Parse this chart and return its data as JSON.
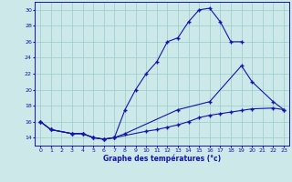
{
  "title": "Graphe des températures (°c)",
  "line_color": "#1414aa",
  "bg_color": "#cce8e8",
  "grid_color": "#99cccc",
  "xlim": [
    -0.5,
    23.5
  ],
  "ylim": [
    13.0,
    31.0
  ],
  "yticks": [
    14,
    16,
    18,
    20,
    22,
    24,
    26,
    28,
    30
  ],
  "xticks": [
    0,
    1,
    2,
    3,
    4,
    5,
    6,
    7,
    8,
    9,
    10,
    11,
    12,
    13,
    14,
    15,
    16,
    17,
    18,
    19,
    20,
    21,
    22,
    23
  ],
  "line_a_x": [
    0,
    1,
    3,
    4,
    5,
    6,
    7,
    8,
    9,
    10,
    11,
    12,
    13,
    14,
    15,
    16,
    17,
    18,
    19
  ],
  "line_a_y": [
    16,
    15,
    14.5,
    14.5,
    14,
    13.8,
    14,
    17.5,
    20,
    22,
    23.5,
    26,
    26.5,
    28.5,
    30,
    30.2,
    28.5,
    26,
    26
  ],
  "line_b_x": [
    0,
    1,
    3,
    4,
    5,
    6,
    7,
    8,
    13,
    16,
    19,
    20,
    22,
    23
  ],
  "line_b_y": [
    16,
    15,
    14.5,
    14.5,
    14,
    13.8,
    14,
    14.5,
    17.5,
    18.5,
    23,
    21,
    18.5,
    17.5
  ],
  "line_c_x": [
    0,
    1,
    3,
    4,
    5,
    6,
    7,
    10,
    11,
    12,
    13,
    14,
    15,
    16,
    17,
    18,
    19,
    20,
    22,
    23
  ],
  "line_c_y": [
    16,
    15,
    14.5,
    14.5,
    14,
    13.8,
    14,
    14.8,
    15.0,
    15.3,
    15.6,
    16.0,
    16.5,
    16.8,
    17.0,
    17.2,
    17.4,
    17.6,
    17.7,
    17.5
  ]
}
